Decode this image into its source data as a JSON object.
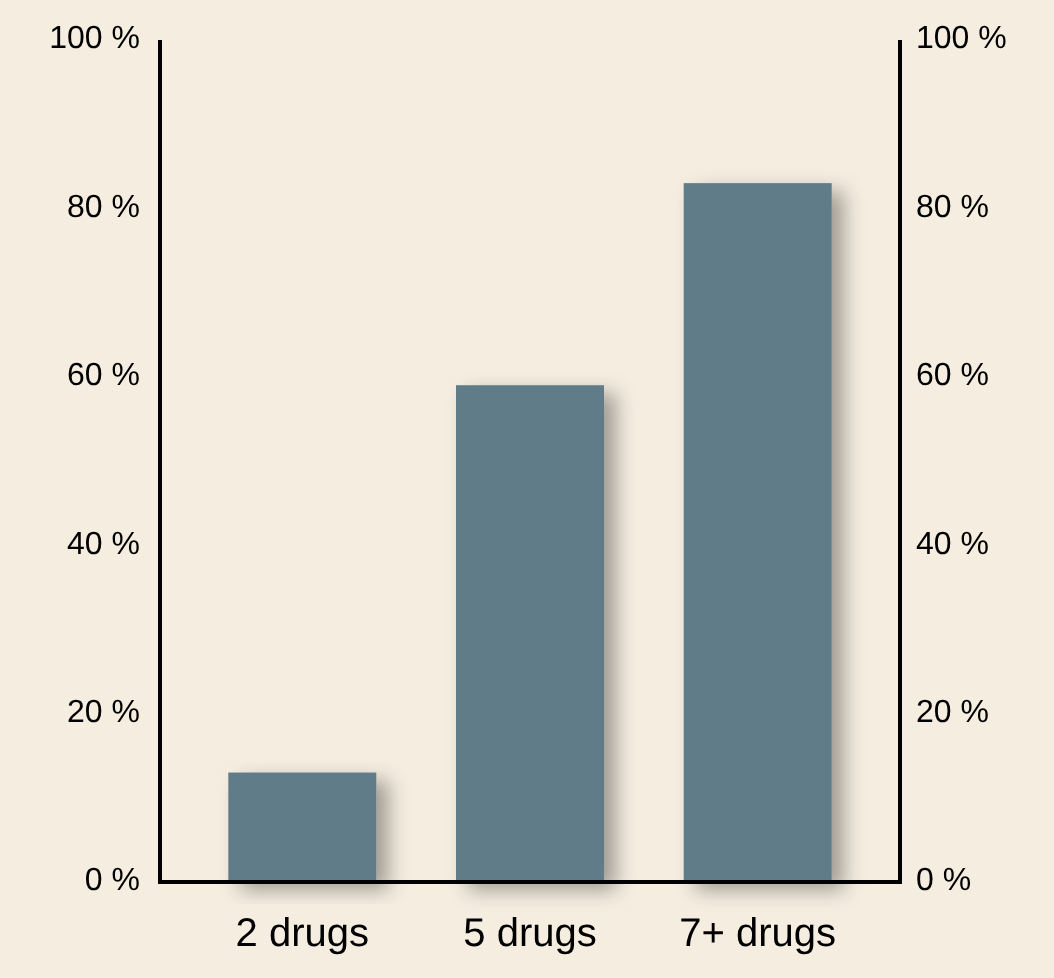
{
  "chart_data": {
    "type": "bar",
    "categories": [
      "2 drugs",
      "5 drugs",
      "7+ drugs"
    ],
    "values": [
      13,
      59,
      83
    ],
    "color": "#5f7c88",
    "ylim": [
      0,
      100
    ],
    "yticks": [
      {
        "value": 0,
        "label": "0 %"
      },
      {
        "value": 20,
        "label": "20 %"
      },
      {
        "value": 40,
        "label": "40 %"
      },
      {
        "value": 60,
        "label": "60 %"
      },
      {
        "value": 80,
        "label": "80 %"
      },
      {
        "value": 100,
        "label": "100 %"
      }
    ],
    "y2lim": [
      0,
      100
    ],
    "y2ticks": [
      {
        "value": 0,
        "label": "0 %"
      },
      {
        "value": 20,
        "label": "20 %"
      },
      {
        "value": 40,
        "label": "40 %"
      },
      {
        "value": 60,
        "label": "60 %"
      },
      {
        "value": 80,
        "label": "80 %"
      },
      {
        "value": 100,
        "label": "100 %"
      }
    ],
    "grid": false
  }
}
